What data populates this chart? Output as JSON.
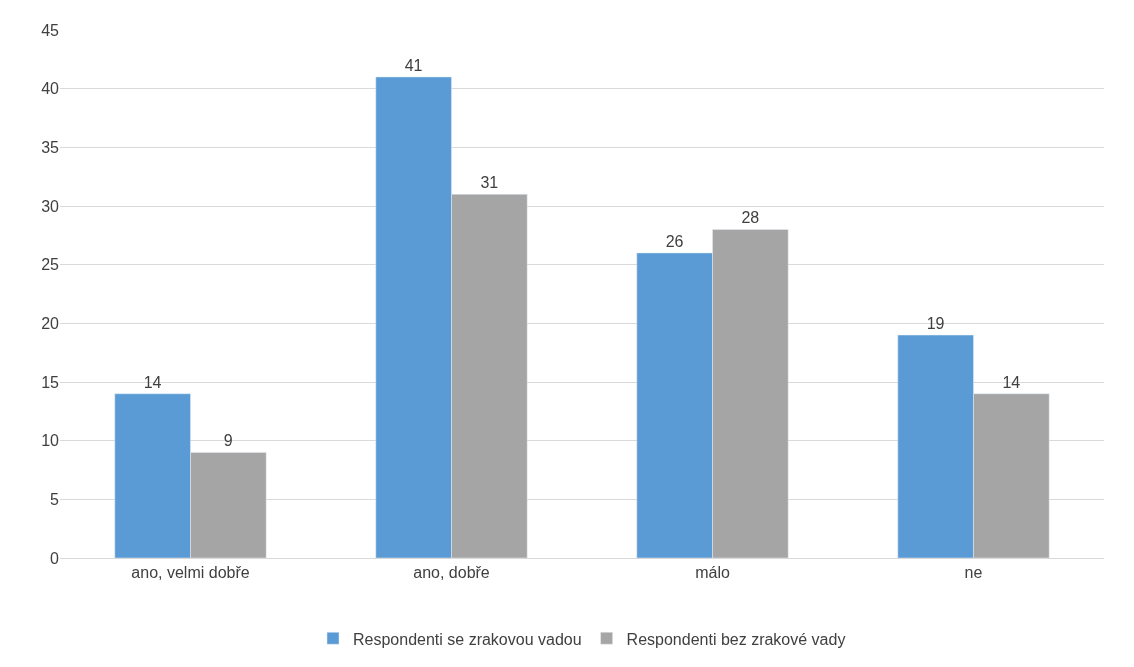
{
  "chart_data": {
    "type": "bar",
    "categories": [
      "ano, velmi dobře",
      "ano, dobře",
      "málo",
      "ne"
    ],
    "series": [
      {
        "name": "Respondenti se zrakovou vadou",
        "color": "#5b9bd5",
        "values": [
          14,
          41,
          26,
          19
        ]
      },
      {
        "name": "Respondenti bez zrakové vady",
        "color": "#a5a5a5",
        "values": [
          9,
          31,
          28,
          14
        ]
      }
    ],
    "ylim": [
      0,
      45
    ],
    "yticks": [
      0,
      5,
      10,
      15,
      20,
      25,
      30,
      35,
      40,
      45
    ],
    "grid": "y",
    "legend": "bottom",
    "data_labels": true
  }
}
